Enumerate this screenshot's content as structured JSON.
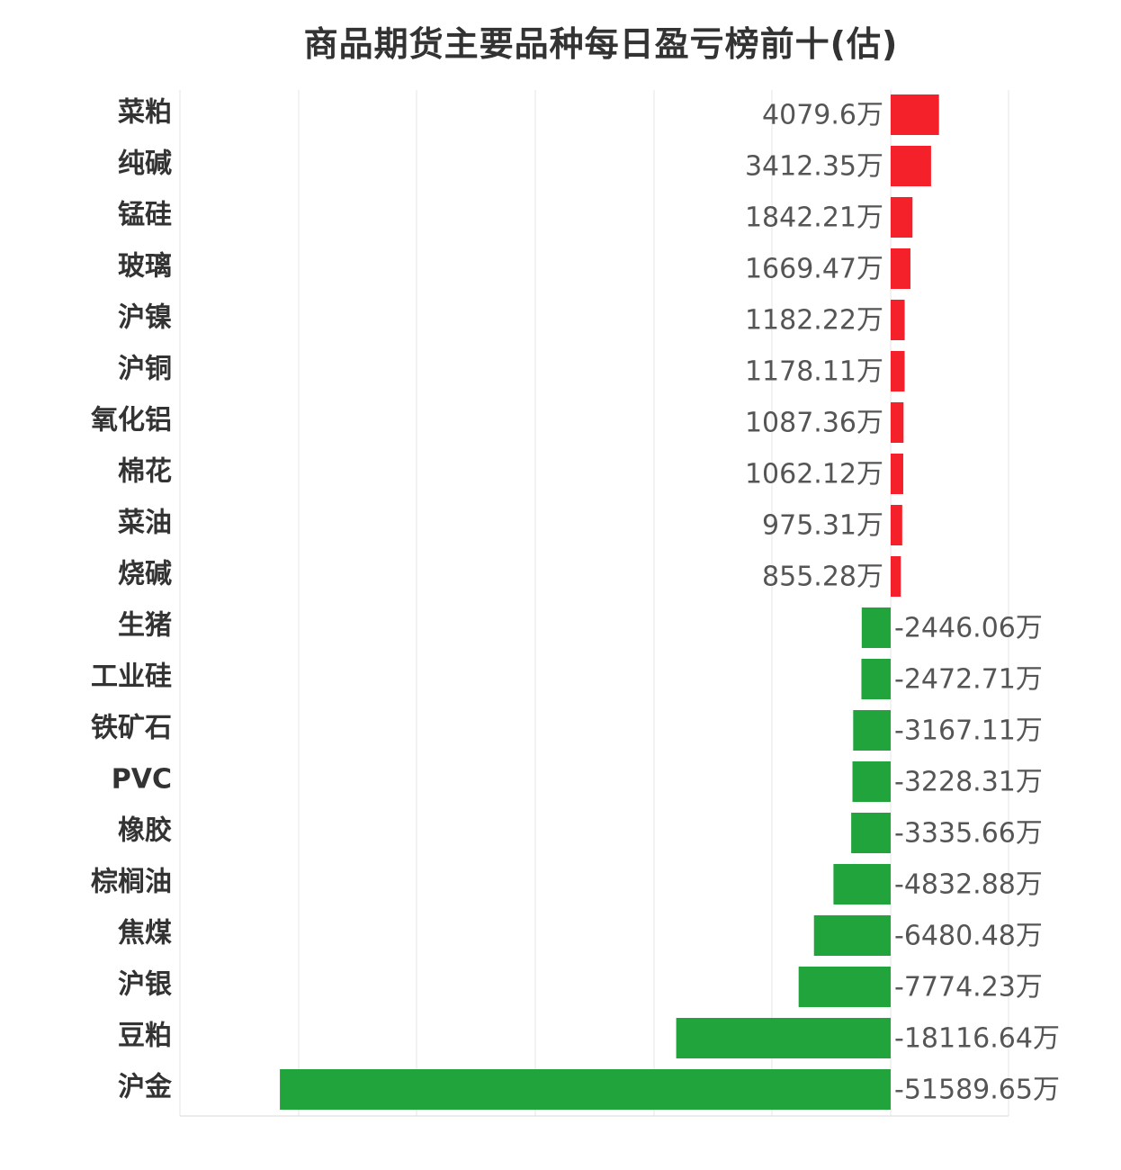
{
  "title": "商品期货主要品种每日盈亏榜前十(估)",
  "colors": {
    "positive": "#f5212a",
    "negative": "#22a43c",
    "text": "#333333",
    "value_text": "#555555",
    "grid": "#e6e6e6"
  },
  "chart_data": {
    "type": "bar",
    "orientation": "horizontal",
    "title": "商品期货主要品种每日盈亏榜前十(估)",
    "unit": "万",
    "xlim": [
      -60000,
      10000
    ],
    "grid": true,
    "categories": [
      "菜粕",
      "纯碱",
      "锰硅",
      "玻璃",
      "沪镍",
      "沪铜",
      "氧化铝",
      "棉花",
      "菜油",
      "烧碱",
      "生猪",
      "工业硅",
      "铁矿石",
      "PVC",
      "橡胶",
      "棕榈油",
      "焦煤",
      "沪银",
      "豆粕",
      "沪金"
    ],
    "values": [
      4079.6,
      3412.35,
      1842.21,
      1669.47,
      1182.22,
      1178.11,
      1087.36,
      1062.12,
      975.31,
      855.28,
      -2446.06,
      -2472.71,
      -3167.11,
      -3228.31,
      -3335.66,
      -4832.88,
      -6480.48,
      -7774.23,
      -18116.64,
      -51589.65
    ],
    "value_labels": [
      "4079.6万",
      "3412.35万",
      "1842.21万",
      "1669.47万",
      "1182.22万",
      "1178.11万",
      "1087.36万",
      "1062.12万",
      "975.31万",
      "855.28万",
      "-2446.06万",
      "-2472.71万",
      "-3167.11万",
      "-3228.31万",
      "-3335.66万",
      "-4832.88万",
      "-6480.48万",
      "-7774.23万",
      "-18116.64万",
      "-51589.65万"
    ]
  }
}
